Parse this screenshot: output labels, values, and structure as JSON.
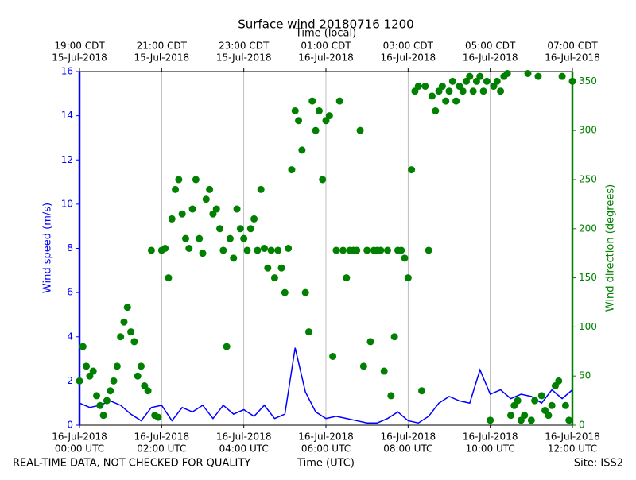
{
  "chart_data": {
    "type": "line",
    "title": "Surface wind 20180716 1200",
    "x_label": "Time (UTC)",
    "x2_label": "Time (local)",
    "y_label": "Wind speed (m/s)",
    "y2_label": "Wind direction (degrees)",
    "footer_left": "REAL-TIME DATA, NOT CHECKED FOR QUALITY",
    "footer_right": "Site: ISS2",
    "xlim": [
      "00:00",
      "12:00"
    ],
    "xticks": [
      {
        "value": "00:00",
        "label": [
          "16-Jul-2018",
          "00:00 UTC"
        ]
      },
      {
        "value": "02:00",
        "label": [
          "16-Jul-2018",
          "02:00 UTC"
        ]
      },
      {
        "value": "04:00",
        "label": [
          "16-Jul-2018",
          "04:00 UTC"
        ]
      },
      {
        "value": "06:00",
        "label": [
          "16-Jul-2018",
          "06:00 UTC"
        ]
      },
      {
        "value": "08:00",
        "label": [
          "16-Jul-2018",
          "08:00 UTC"
        ]
      },
      {
        "value": "10:00",
        "label": [
          "16-Jul-2018",
          "10:00 UTC"
        ]
      },
      {
        "value": "12:00",
        "label": [
          "16-Jul-2018",
          "12:00 UTC"
        ]
      }
    ],
    "x2ticks": [
      {
        "value": "00:00",
        "label": [
          "19:00 CDT",
          "15-Jul-2018"
        ]
      },
      {
        "value": "02:00",
        "label": [
          "21:00 CDT",
          "15-Jul-2018"
        ]
      },
      {
        "value": "04:00",
        "label": [
          "23:00 CDT",
          "15-Jul-2018"
        ]
      },
      {
        "value": "06:00",
        "label": [
          "01:00 CDT",
          "16-Jul-2018"
        ]
      },
      {
        "value": "08:00",
        "label": [
          "03:00 CDT",
          "16-Jul-2018"
        ]
      },
      {
        "value": "10:00",
        "label": [
          "05:00 CDT",
          "16-Jul-2018"
        ]
      },
      {
        "value": "12:00",
        "label": [
          "07:00 CDT",
          "16-Jul-2018"
        ]
      }
    ],
    "ylim": [
      0,
      16
    ],
    "yticks": [
      0,
      2,
      4,
      6,
      8,
      10,
      12,
      14,
      16
    ],
    "y2lim": [
      0,
      360
    ],
    "y2ticks": [
      0,
      50,
      100,
      150,
      200,
      250,
      300,
      350
    ],
    "grid": true,
    "series": [
      {
        "type": "line",
        "color": "#0000ff",
        "x": [
          "00:00",
          "00:15",
          "00:30",
          "00:45",
          "01:00",
          "01:15",
          "01:30",
          "01:45",
          "02:00",
          "02:15",
          "02:30",
          "02:45",
          "03:00",
          "03:15",
          "03:30",
          "03:45",
          "04:00",
          "04:15",
          "04:30",
          "04:45",
          "05:00",
          "05:15",
          "05:30",
          "05:45",
          "06:00",
          "06:15",
          "06:30",
          "06:45",
          "07:00",
          "07:15",
          "07:30",
          "07:45",
          "08:00",
          "08:15",
          "08:30",
          "08:45",
          "09:00",
          "09:15",
          "09:30",
          "09:45",
          "10:00",
          "10:15",
          "10:30",
          "10:45",
          "11:00",
          "11:15",
          "11:30",
          "11:45",
          "12:00"
        ],
        "values": [
          1.0,
          0.8,
          0.9,
          1.1,
          0.9,
          0.5,
          0.2,
          0.8,
          0.9,
          0.2,
          0.8,
          0.6,
          0.9,
          0.3,
          0.9,
          0.5,
          0.7,
          0.4,
          0.9,
          0.3,
          0.5,
          3.5,
          1.5,
          0.6,
          0.3,
          0.4,
          0.3,
          0.2,
          0.1,
          0.1,
          0.3,
          0.6,
          0.2,
          0.1,
          0.4,
          1.0,
          1.3,
          1.1,
          1.0,
          2.5,
          1.4,
          1.6,
          1.2,
          1.4,
          1.3,
          1.0,
          1.6,
          1.2,
          1.6
        ]
      },
      {
        "type": "scatter",
        "color": "#008000",
        "axis": "y2",
        "x": [
          "00:00",
          "00:05",
          "00:10",
          "00:15",
          "00:20",
          "00:25",
          "00:30",
          "00:35",
          "00:40",
          "00:45",
          "00:50",
          "00:55",
          "01:00",
          "01:05",
          "01:10",
          "01:15",
          "01:20",
          "01:25",
          "01:30",
          "01:35",
          "01:40",
          "01:45",
          "01:50",
          "01:55",
          "02:00",
          "02:05",
          "02:10",
          "02:15",
          "02:20",
          "02:25",
          "02:30",
          "02:35",
          "02:40",
          "02:45",
          "02:50",
          "02:55",
          "03:00",
          "03:05",
          "03:10",
          "03:15",
          "03:20",
          "03:25",
          "03:30",
          "03:35",
          "03:40",
          "03:45",
          "03:50",
          "03:55",
          "04:00",
          "04:05",
          "04:10",
          "04:15",
          "04:20",
          "04:25",
          "04:30",
          "04:35",
          "04:40",
          "04:45",
          "04:50",
          "04:55",
          "05:00",
          "05:05",
          "05:10",
          "05:15",
          "05:20",
          "05:25",
          "05:30",
          "05:35",
          "05:40",
          "05:45",
          "05:50",
          "05:55",
          "06:00",
          "06:05",
          "06:10",
          "06:15",
          "06:20",
          "06:25",
          "06:30",
          "06:35",
          "06:40",
          "06:45",
          "06:50",
          "06:55",
          "07:00",
          "07:05",
          "07:10",
          "07:15",
          "07:20",
          "07:25",
          "07:30",
          "07:35",
          "07:40",
          "07:45",
          "07:50",
          "07:55",
          "08:00",
          "08:05",
          "08:10",
          "08:15",
          "08:20",
          "08:25",
          "08:30",
          "08:35",
          "08:40",
          "08:45",
          "08:50",
          "08:55",
          "09:00",
          "09:05",
          "09:10",
          "09:15",
          "09:20",
          "09:25",
          "09:30",
          "09:35",
          "09:40",
          "09:45",
          "09:50",
          "09:55",
          "10:00",
          "10:05",
          "10:10",
          "10:15",
          "10:20",
          "10:25",
          "10:30",
          "10:35",
          "10:40",
          "10:45",
          "10:50",
          "10:55",
          "11:00",
          "11:05",
          "11:10",
          "11:15",
          "11:20",
          "11:25",
          "11:30",
          "11:35",
          "11:40",
          "11:45",
          "11:50",
          "11:55",
          "12:00"
        ],
        "values": [
          45,
          80,
          60,
          50,
          55,
          30,
          20,
          10,
          25,
          35,
          45,
          60,
          90,
          105,
          120,
          95,
          85,
          50,
          60,
          40,
          35,
          178,
          10,
          8,
          178,
          180,
          150,
          210,
          240,
          250,
          215,
          190,
          180,
          220,
          250,
          190,
          175,
          230,
          240,
          215,
          220,
          200,
          178,
          80,
          190,
          170,
          220,
          200,
          190,
          178,
          200,
          210,
          178,
          240,
          180,
          160,
          178,
          150,
          178,
          160,
          135,
          180,
          260,
          320,
          310,
          280,
          135,
          95,
          330,
          300,
          320,
          250,
          310,
          315,
          70,
          178,
          330,
          178,
          150,
          178,
          178,
          178,
          300,
          60,
          178,
          85,
          178,
          178,
          178,
          55,
          178,
          30,
          90,
          178,
          178,
          170,
          150,
          260,
          340,
          345,
          35,
          345,
          178,
          335,
          320,
          340,
          345,
          330,
          340,
          350,
          330,
          345,
          340,
          350,
          355,
          340,
          350,
          355,
          340,
          350,
          5,
          345,
          350,
          340,
          355,
          358,
          10,
          20,
          25,
          5,
          10,
          358,
          5,
          25,
          355,
          30,
          15,
          10,
          20,
          40,
          45,
          355,
          20,
          5,
          350
        ]
      }
    ]
  }
}
